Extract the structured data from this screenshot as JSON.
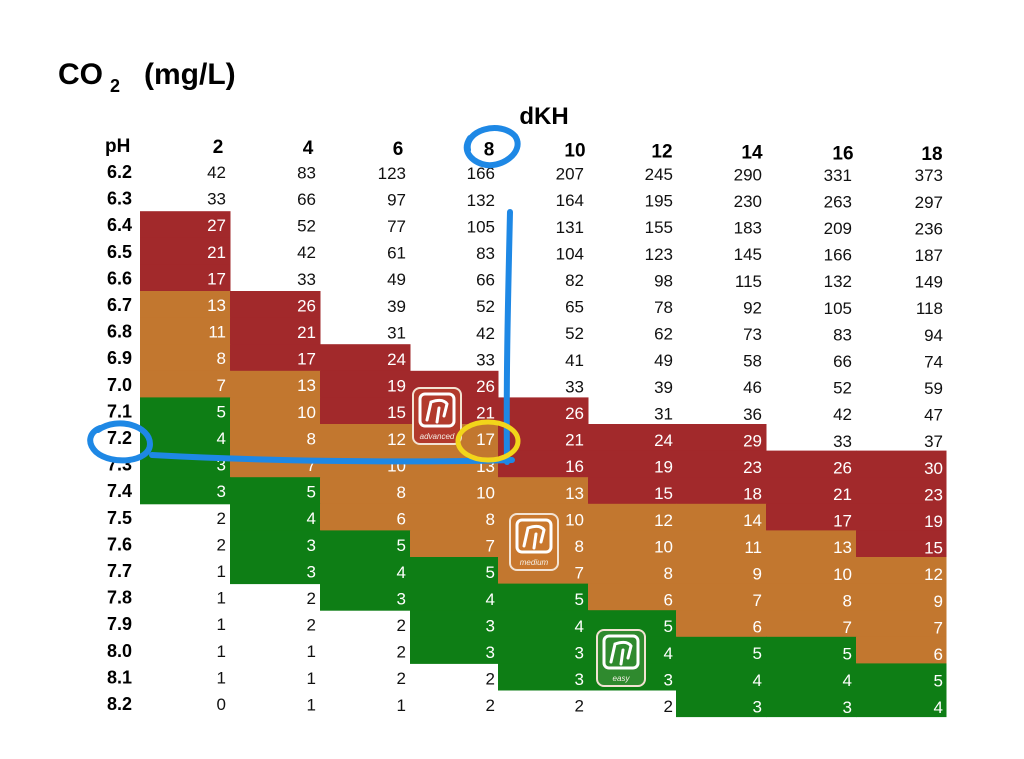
{
  "title": {
    "main": "CO",
    "subscript": "2",
    "unit": "(mg/L)"
  },
  "chart_data": {
    "type": "table",
    "title": "CO2 (mg/L)",
    "row_header": "pH",
    "column_header": "dKH",
    "columns": [
      "2",
      "4",
      "6",
      "8",
      "10",
      "12",
      "14",
      "16",
      "18"
    ],
    "rows": [
      "6.2",
      "6.3",
      "6.4",
      "6.5",
      "6.6",
      "6.7",
      "6.8",
      "6.9",
      "7.0",
      "7.1",
      "7.2",
      "7.3",
      "7.4",
      "7.5",
      "7.6",
      "7.7",
      "7.8",
      "7.9",
      "8.0",
      "8.1",
      "8.2"
    ],
    "values": [
      [
        42,
        83,
        123,
        166,
        207,
        245,
        290,
        331,
        373
      ],
      [
        33,
        66,
        97,
        132,
        164,
        195,
        230,
        263,
        297
      ],
      [
        27,
        52,
        77,
        105,
        131,
        155,
        183,
        209,
        236
      ],
      [
        21,
        42,
        61,
        83,
        104,
        123,
        145,
        166,
        187
      ],
      [
        17,
        33,
        49,
        66,
        82,
        98,
        115,
        132,
        149
      ],
      [
        13,
        26,
        39,
        52,
        65,
        78,
        92,
        105,
        118
      ],
      [
        11,
        21,
        31,
        42,
        52,
        62,
        73,
        83,
        94
      ],
      [
        8,
        17,
        24,
        33,
        41,
        49,
        58,
        66,
        74
      ],
      [
        7,
        13,
        19,
        26,
        33,
        39,
        46,
        52,
        59
      ],
      [
        5,
        10,
        15,
        21,
        26,
        31,
        36,
        42,
        47
      ],
      [
        4,
        8,
        12,
        17,
        21,
        24,
        29,
        33,
        37
      ],
      [
        3,
        7,
        10,
        13,
        16,
        19,
        23,
        26,
        30
      ],
      [
        3,
        5,
        8,
        10,
        13,
        15,
        18,
        21,
        23
      ],
      [
        2,
        4,
        6,
        8,
        10,
        12,
        14,
        17,
        19
      ],
      [
        2,
        3,
        5,
        7,
        8,
        10,
        11,
        13,
        15
      ],
      [
        1,
        3,
        4,
        5,
        7,
        8,
        9,
        10,
        12
      ],
      [
        1,
        2,
        3,
        4,
        5,
        6,
        7,
        8,
        9
      ],
      [
        1,
        2,
        2,
        3,
        4,
        5,
        6,
        7,
        7
      ],
      [
        1,
        1,
        2,
        3,
        3,
        4,
        5,
        5,
        6
      ],
      [
        1,
        1,
        2,
        2,
        3,
        3,
        4,
        4,
        5
      ],
      [
        0,
        1,
        1,
        2,
        2,
        2,
        3,
        3,
        4
      ]
    ],
    "zone_colors": {
      "red": "#A2292B",
      "orange": "#C2772F",
      "green": "#0E7E15",
      "white": "#ffffff"
    },
    "zones": [
      [
        "white",
        "white",
        "white",
        "white",
        "white",
        "white",
        "white",
        "white",
        "white"
      ],
      [
        "white",
        "white",
        "white",
        "white",
        "white",
        "white",
        "white",
        "white",
        "white"
      ],
      [
        "red",
        "white",
        "white",
        "white",
        "white",
        "white",
        "white",
        "white",
        "white"
      ],
      [
        "red",
        "white",
        "white",
        "white",
        "white",
        "white",
        "white",
        "white",
        "white"
      ],
      [
        "red",
        "white",
        "white",
        "white",
        "white",
        "white",
        "white",
        "white",
        "white"
      ],
      [
        "orange",
        "red",
        "white",
        "white",
        "white",
        "white",
        "white",
        "white",
        "white"
      ],
      [
        "orange",
        "red",
        "white",
        "white",
        "white",
        "white",
        "white",
        "white",
        "white"
      ],
      [
        "orange",
        "red",
        "red",
        "white",
        "white",
        "white",
        "white",
        "white",
        "white"
      ],
      [
        "orange",
        "orange",
        "red",
        "red",
        "white",
        "white",
        "white",
        "white",
        "white"
      ],
      [
        "green",
        "orange",
        "red",
        "red",
        "red",
        "white",
        "white",
        "white",
        "white"
      ],
      [
        "green",
        "orange",
        "orange",
        "orange",
        "red",
        "red",
        "red",
        "white",
        "white"
      ],
      [
        "green",
        "orange",
        "orange",
        "orange",
        "red",
        "red",
        "red",
        "red",
        "red"
      ],
      [
        "green",
        "green",
        "orange",
        "orange",
        "orange",
        "red",
        "red",
        "red",
        "red"
      ],
      [
        "white",
        "green",
        "orange",
        "orange",
        "orange",
        "orange",
        "orange",
        "red",
        "red"
      ],
      [
        "white",
        "green",
        "green",
        "orange",
        "orange",
        "orange",
        "orange",
        "orange",
        "red"
      ],
      [
        "white",
        "green",
        "green",
        "green",
        "orange",
        "orange",
        "orange",
        "orange",
        "orange"
      ],
      [
        "white",
        "white",
        "green",
        "green",
        "green",
        "orange",
        "orange",
        "orange",
        "orange"
      ],
      [
        "white",
        "white",
        "white",
        "green",
        "green",
        "green",
        "orange",
        "orange",
        "orange"
      ],
      [
        "white",
        "white",
        "white",
        "green",
        "green",
        "green",
        "green",
        "green",
        "orange"
      ],
      [
        "white",
        "white",
        "white",
        "white",
        "green",
        "green",
        "green",
        "green",
        "green"
      ],
      [
        "white",
        "white",
        "white",
        "white",
        "white",
        "white",
        "green",
        "green",
        "green"
      ]
    ],
    "highlights": {
      "column_circled": "8",
      "row_circled": "7.2",
      "cell_circled": {
        "row": "7.2",
        "column": "8",
        "value": 17
      },
      "circle_color_header": "#1E88E5",
      "circle_color_cell": "#F2D51A",
      "guide_line_color": "#1E88E5"
    },
    "badges": [
      {
        "label": "advanced",
        "color": "#B23A2C"
      },
      {
        "label": "medium",
        "color": "#C9782E"
      },
      {
        "label": "easy",
        "color": "#2F8A2E"
      }
    ]
  }
}
